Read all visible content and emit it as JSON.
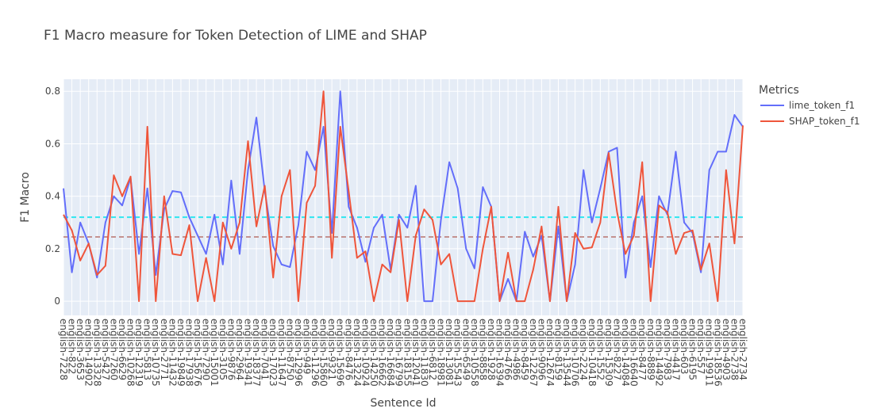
{
  "chart_data": {
    "type": "line",
    "title": "F1 Macro measure for Token Detection of LIME and SHAP",
    "xlabel": "Sentence Id",
    "ylabel": "F1 Macro",
    "legend_title": "Metrics",
    "legend": "right",
    "grid": true,
    "categories": [
      "english-7228",
      "english-822",
      "english-3653",
      "english-14902",
      "english-13328",
      "english-5427",
      "english-7260",
      "english-6629",
      "english-10268",
      "english-12319",
      "english-5813",
      "english-10735",
      "english-2771",
      "english-11432",
      "english-19849",
      "english-17938",
      "english-15676",
      "english-7290",
      "english-15001",
      "english-3105",
      "english-9876",
      "english-2964",
      "english-19341",
      "english-18377",
      "english-7041",
      "english-17023",
      "english-11647",
      "english-8750",
      "english-12996",
      "english-949",
      "english-11296",
      "english-15860",
      "english-9321",
      "english-15696",
      "english-8476",
      "english-13224",
      "english-10924",
      "english-14250",
      "english-16662",
      "english-16684",
      "english-16799",
      "english-18155",
      "english-12041",
      "english-11830",
      "english-6812",
      "english-18981",
      "english-13081",
      "english-15543",
      "english-6549",
      "english-10558",
      "english-8858",
      "english-1928",
      "english-16394",
      "english-4766",
      "english-4986",
      "english-8459",
      "english-12267",
      "english-9096",
      "english-12674",
      "english-8159",
      "english-13544",
      "english-10706",
      "english-2224",
      "english-10418",
      "english-1552",
      "english-15309",
      "english-8227",
      "english-14084",
      "english-16640",
      "english-8477",
      "english-8889",
      "english-14492",
      "english-7983",
      "english-4417",
      "english-603",
      "english-6195",
      "english-557",
      "english-19911",
      "english-18536",
      "english-4903",
      "english-2738",
      "english-2734"
    ],
    "series": [
      {
        "name": "lime_token_f1",
        "color": "#636efa",
        "values": [
          0.43,
          0.11,
          0.3,
          0.22,
          0.09,
          0.3,
          0.4,
          0.365,
          0.47,
          0.18,
          0.43,
          0.1,
          0.35,
          0.42,
          0.415,
          0.32,
          0.25,
          0.18,
          0.33,
          0.14,
          0.46,
          0.18,
          0.5,
          0.7,
          0.42,
          0.21,
          0.14,
          0.13,
          0.29,
          0.57,
          0.5,
          0.665,
          0.26,
          0.8,
          0.36,
          0.28,
          0.15,
          0.28,
          0.33,
          0.12,
          0.33,
          0.28,
          0.44,
          0.0,
          0.0,
          0.31,
          0.53,
          0.43,
          0.2,
          0.125,
          0.435,
          0.36,
          0.0,
          0.085,
          0.0,
          0.265,
          0.17,
          0.25,
          0.0,
          0.285,
          0.0,
          0.14,
          0.5,
          0.3,
          0.43,
          0.57,
          0.585,
          0.09,
          0.3,
          0.4,
          0.13,
          0.4,
          0.33,
          0.57,
          0.3,
          0.26,
          0.11,
          0.5,
          0.57,
          0.57,
          0.71,
          0.665
        ]
      },
      {
        "name": "SHAP_token_f1",
        "color": "#ef553b",
        "values": [
          0.33,
          0.27,
          0.155,
          0.22,
          0.1,
          0.135,
          0.48,
          0.4,
          0.475,
          0.0,
          0.665,
          0.0,
          0.4,
          0.18,
          0.175,
          0.29,
          0.0,
          0.165,
          0.0,
          0.3,
          0.2,
          0.3,
          0.61,
          0.285,
          0.44,
          0.09,
          0.4,
          0.5,
          0.0,
          0.375,
          0.44,
          0.8,
          0.165,
          0.665,
          0.42,
          0.165,
          0.19,
          0.0,
          0.14,
          0.11,
          0.31,
          0.0,
          0.25,
          0.35,
          0.31,
          0.14,
          0.18,
          0.0,
          0.0,
          0.0,
          0.2,
          0.36,
          0.0,
          0.185,
          0.0,
          0.0,
          0.12,
          0.285,
          0.0,
          0.36,
          0.0,
          0.26,
          0.2,
          0.205,
          0.3,
          0.565,
          0.34,
          0.18,
          0.25,
          0.53,
          0.0,
          0.365,
          0.34,
          0.18,
          0.26,
          0.27,
          0.12,
          0.22,
          0.0,
          0.5,
          0.22,
          0.67
        ]
      }
    ],
    "reference_lines": [
      {
        "value": 0.32,
        "color": "#2ee6f0"
      },
      {
        "value": 0.245,
        "color": "#c4918f"
      }
    ],
    "ylim": [
      -0.054,
      0.846
    ],
    "yticks": [
      0,
      0.2,
      0.4,
      0.6,
      0.8
    ]
  }
}
